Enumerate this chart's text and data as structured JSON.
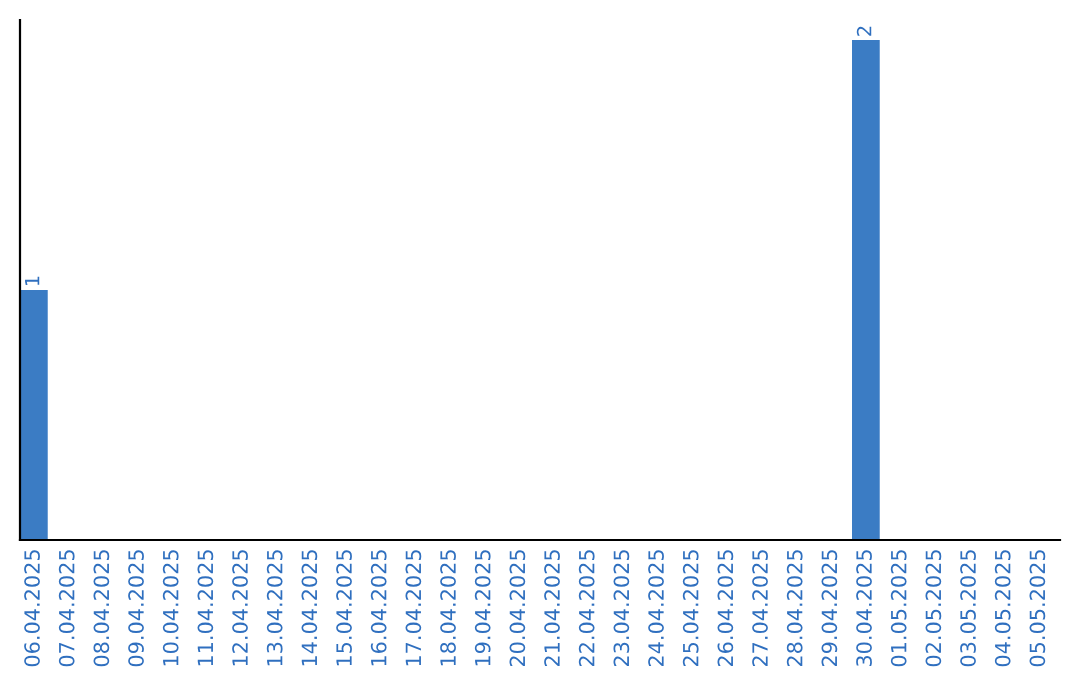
{
  "chart_data": {
    "type": "bar",
    "categories": [
      "06.04.2025",
      "07.04.2025",
      "08.04.2025",
      "09.04.2025",
      "10.04.2025",
      "11.04.2025",
      "12.04.2025",
      "13.04.2025",
      "14.04.2025",
      "15.04.2025",
      "16.04.2025",
      "17.04.2025",
      "18.04.2025",
      "19.04.2025",
      "20.04.2025",
      "21.04.2025",
      "22.04.2025",
      "23.04.2025",
      "24.04.2025",
      "25.04.2025",
      "26.04.2025",
      "27.04.2025",
      "28.04.2025",
      "29.04.2025",
      "30.04.2025",
      "01.05.2025",
      "02.05.2025",
      "03.05.2025",
      "04.05.2025",
      "05.05.2025"
    ],
    "values": [
      1,
      0,
      0,
      0,
      0,
      0,
      0,
      0,
      0,
      0,
      0,
      0,
      0,
      0,
      0,
      0,
      0,
      0,
      0,
      0,
      0,
      0,
      0,
      0,
      2,
      0,
      0,
      0,
      0,
      0
    ],
    "value_labels": [
      "1",
      null,
      null,
      null,
      null,
      null,
      null,
      null,
      null,
      null,
      null,
      null,
      null,
      null,
      null,
      null,
      null,
      null,
      null,
      null,
      null,
      null,
      null,
      null,
      "2",
      null,
      null,
      null,
      null,
      null
    ],
    "color": "#3b7cc4",
    "ylim": [
      0,
      2.08
    ],
    "tick_labels": "x",
    "grid": false,
    "legend": false
  }
}
